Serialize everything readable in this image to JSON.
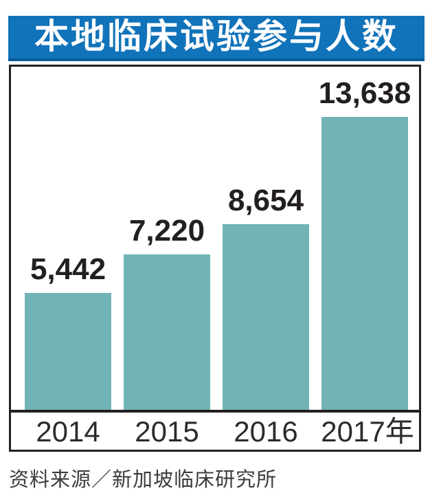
{
  "title": "本地临床试验参与人数",
  "source": "资料来源／新加坡临床研究所",
  "colors": {
    "title_bg": "#1173b9",
    "title_bg_bottom_edge": "#0b5c96",
    "title_text": "#ffffff",
    "bar_fill": "#72b4b6",
    "axis_and_border": "#231f20",
    "value_text": "#231f20",
    "year_text": "#2b2b2b",
    "source_text": "#3c3c3c",
    "background": "#ffffff"
  },
  "chart_data": {
    "type": "bar",
    "title": "本地临床试验参与人数",
    "categories": [
      "2014",
      "2015",
      "2016",
      "2017年"
    ],
    "values": [
      5442,
      7220,
      8654,
      13638
    ],
    "value_labels": [
      "5,442",
      "7,220",
      "8,654",
      "13,638"
    ],
    "xlabel": "",
    "ylabel": "",
    "ylim": [
      0,
      13638
    ],
    "grid": false,
    "legend": "none",
    "value_labels_position": "above-bars",
    "source": "资料来源／新加坡临床研究所"
  }
}
